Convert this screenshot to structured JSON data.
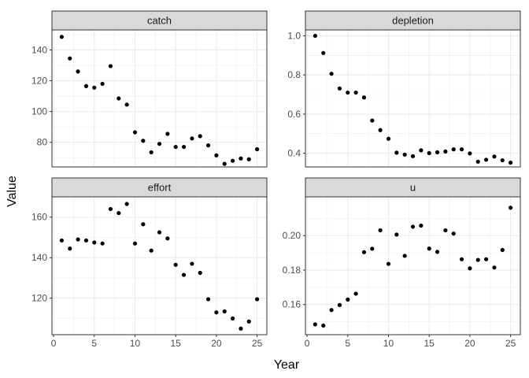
{
  "chart_data": {
    "type": "scatter",
    "xlabel": "Year",
    "ylabel": "Value",
    "grid": true,
    "panels": [
      {
        "name": "catch",
        "x": [
          1,
          2,
          3,
          4,
          5,
          6,
          7,
          8,
          9,
          10,
          11,
          12,
          13,
          14,
          15,
          16,
          17,
          18,
          19,
          20,
          21,
          22,
          23,
          24,
          25
        ],
        "values": [
          148.5,
          134.5,
          126,
          116.5,
          115.5,
          118,
          129.5,
          108.5,
          104.5,
          86.5,
          81,
          73.5,
          79,
          85.5,
          77,
          77,
          82.5,
          84,
          78,
          71.5,
          66,
          68,
          69.5,
          69,
          75.5
        ],
        "ylim": [
          64,
          153
        ],
        "yticks": [
          80,
          100,
          120,
          140
        ],
        "yminor": [
          70,
          90,
          110,
          130,
          150
        ]
      },
      {
        "name": "depletion",
        "x": [
          1,
          2,
          3,
          4,
          5,
          6,
          7,
          8,
          9,
          10,
          11,
          12,
          13,
          14,
          15,
          16,
          17,
          18,
          19,
          20,
          21,
          22,
          23,
          24,
          25
        ],
        "values": [
          1.0,
          0.912,
          0.806,
          0.731,
          0.71,
          0.71,
          0.685,
          0.567,
          0.518,
          0.474,
          0.403,
          0.393,
          0.385,
          0.415,
          0.401,
          0.405,
          0.409,
          0.42,
          0.42,
          0.399,
          0.357,
          0.367,
          0.383,
          0.364,
          0.352
        ],
        "ylim": [
          0.33,
          1.03
        ],
        "yticks": [
          0.4,
          0.6,
          0.8,
          1.0
        ],
        "yminor": [
          0.5,
          0.7,
          0.9
        ]
      },
      {
        "name": "effort",
        "x": [
          1,
          2,
          3,
          4,
          5,
          6,
          7,
          8,
          9,
          10,
          11,
          12,
          13,
          14,
          15,
          16,
          17,
          18,
          19,
          20,
          21,
          22,
          23,
          24,
          25
        ],
        "values": [
          148.5,
          144.5,
          149,
          148.5,
          147.5,
          147,
          164,
          162,
          166.5,
          147,
          156.5,
          143.5,
          152.5,
          149.5,
          136.5,
          131.5,
          137,
          132.5,
          119.5,
          113,
          113.5,
          110,
          105,
          108.5,
          119.5
        ],
        "ylim": [
          102,
          170
        ],
        "yticks": [
          120,
          140,
          160
        ],
        "yminor": [
          110,
          130,
          150,
          170
        ]
      },
      {
        "name": "u",
        "x": [
          1,
          2,
          3,
          4,
          5,
          6,
          7,
          8,
          9,
          10,
          11,
          12,
          13,
          14,
          15,
          16,
          17,
          18,
          19,
          20,
          21,
          22,
          23,
          24,
          25
        ],
        "values": [
          0.1485,
          0.1478,
          0.1568,
          0.1597,
          0.1629,
          0.1663,
          0.1904,
          0.1924,
          0.2031,
          0.1836,
          0.2006,
          0.1883,
          0.2052,
          0.2058,
          0.1925,
          0.1906,
          0.2031,
          0.2012,
          0.1863,
          0.181,
          0.1859,
          0.1863,
          0.1815,
          0.1917,
          0.2162
        ],
        "ylim": [
          0.1425,
          0.2225
        ],
        "yticks": [
          0.16,
          0.18,
          0.2
        ],
        "yminor": [
          0.15,
          0.17,
          0.19,
          0.21
        ]
      }
    ],
    "xlim": [
      -0.2,
      26.2
    ],
    "xticks": [
      0,
      5,
      10,
      15,
      20,
      25
    ],
    "xminor": [
      2.5,
      7.5,
      12.5,
      17.5,
      22.5
    ]
  }
}
